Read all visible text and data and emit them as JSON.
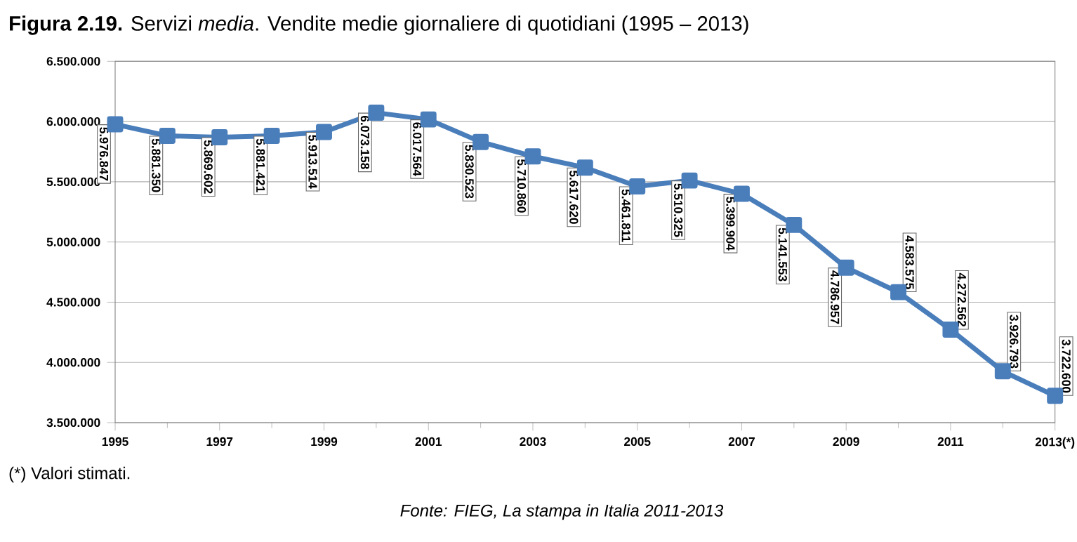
{
  "chart_data": {
    "type": "line",
    "title": "**Figura 2.19.** Servizi *media*. Vendite medie giornaliere di quotidiani (1995 – 2013)",
    "x": [
      1995,
      1996,
      1997,
      1998,
      1999,
      2000,
      2001,
      2002,
      2003,
      2004,
      2005,
      2006,
      2007,
      2008,
      2009,
      2010,
      2011,
      2012,
      2013
    ],
    "values": [
      5976847,
      5881350,
      5869602,
      5881421,
      5913514,
      6073158,
      6017564,
      5830523,
      5710860,
      5617620,
      5461811,
      5510325,
      5399904,
      5141553,
      4786957,
      4583575,
      4272562,
      3926793,
      3722600
    ],
    "value_labels": [
      "5.976.847",
      "5.881.350",
      "5.869.602",
      "5.881.421",
      "5.913.514",
      "6.073.158",
      "6.017.564",
      "5.830.523",
      "5.710.860",
      "5.617.620",
      "5.461.811",
      "5.510.325",
      "5.399.904",
      "5.141.553",
      "4.786.957",
      "4.583.575",
      "4.272.562",
      "3.926.793",
      "3.722.600"
    ],
    "color": "#4a7ebb",
    "marker": "square",
    "line_style": "solid",
    "grid": "y",
    "xlim": [
      1995,
      2013
    ],
    "xticks": [
      1995,
      1997,
      1999,
      2001,
      2003,
      2005,
      2007,
      2009,
      2011,
      {
        "value": 2013,
        "label": "2013(*)"
      }
    ],
    "ylim": [
      3500000,
      6500000
    ],
    "yticks": [
      {
        "value": 3500000,
        "label": "3.500.000"
      },
      {
        "value": 4000000,
        "label": "4.000.000"
      },
      {
        "value": 4500000,
        "label": "4.500.000"
      },
      {
        "value": 5000000,
        "label": "5.000.000"
      },
      {
        "value": 5500000,
        "label": "5.500.000"
      },
      {
        "value": 6000000,
        "label": "6.000.000"
      },
      {
        "value": 6500000,
        "label": "6.500.000"
      }
    ],
    "annotations": [
      "(*) Valori stimati.",
      "Fonte: FIEG, La stampa in Italia 2011-2013"
    ]
  }
}
